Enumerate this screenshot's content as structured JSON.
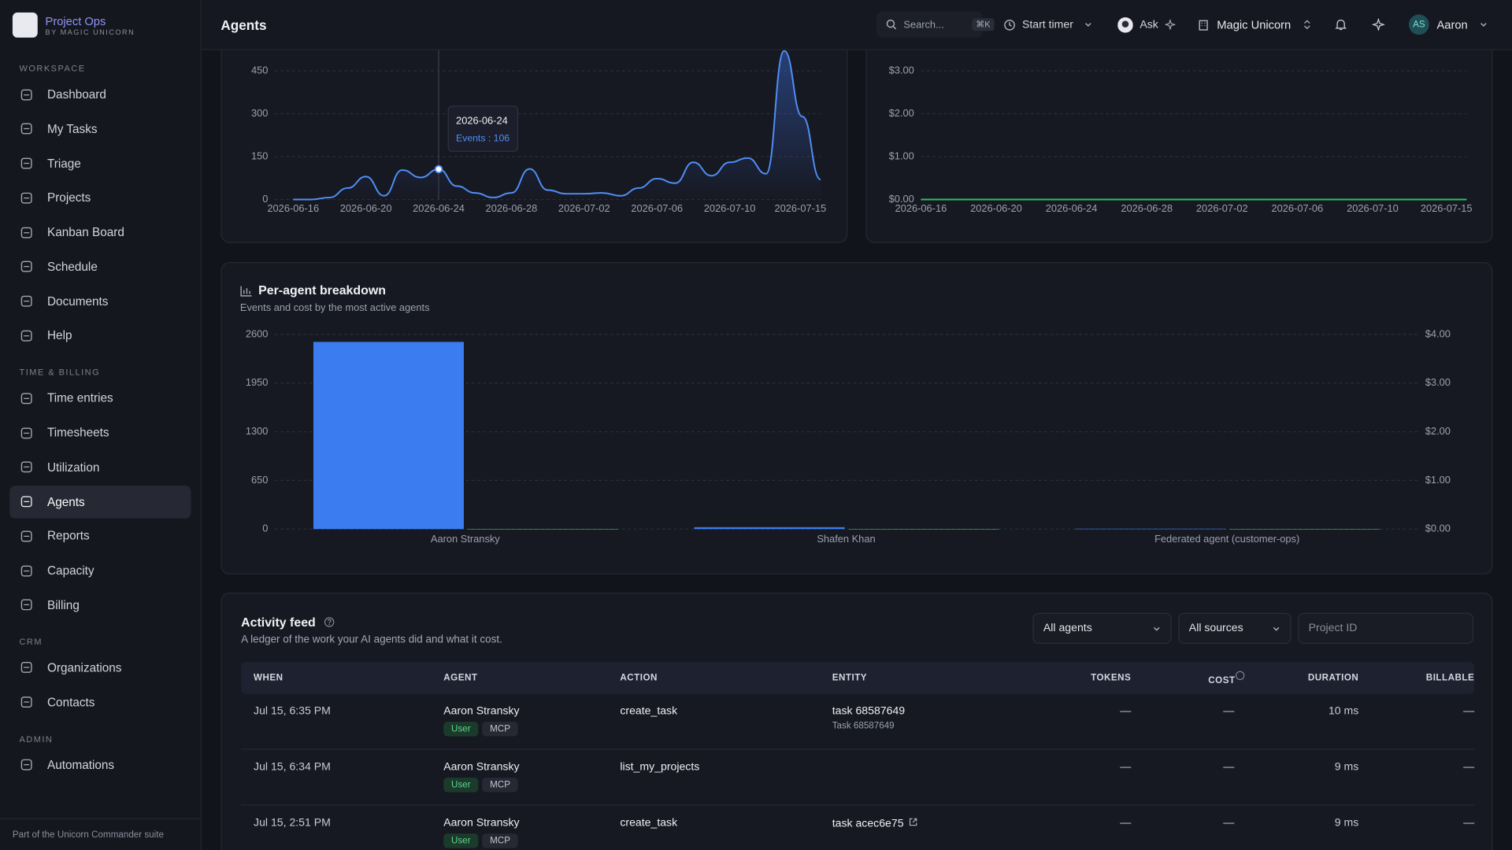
{
  "app": {
    "name": "Project Ops",
    "tagline": "BY MAGIC UNICORN"
  },
  "header": {
    "title": "Agents",
    "search": "Search...",
    "shortcut": "⌘K",
    "timer": "Start timer",
    "ask": "Ask",
    "workspace": "Magic Unicorn",
    "initials": "AS",
    "user": "Aaron"
  },
  "sidebar": {
    "sections": [
      {
        "title": "WORKSPACE",
        "items": [
          {
            "label": "Dashboard"
          },
          {
            "label": "My Tasks"
          },
          {
            "label": "Triage"
          },
          {
            "label": "Projects"
          },
          {
            "label": "Kanban Board"
          },
          {
            "label": "Schedule"
          },
          {
            "label": "Documents"
          },
          {
            "label": "Help"
          }
        ]
      },
      {
        "title": "TIME & BILLING",
        "items": [
          {
            "label": "Time entries"
          },
          {
            "label": "Timesheets"
          },
          {
            "label": "Utilization"
          },
          {
            "label": "Agents",
            "active": true
          },
          {
            "label": "Reports"
          },
          {
            "label": "Capacity"
          },
          {
            "label": "Billing"
          }
        ]
      },
      {
        "title": "CRM",
        "items": [
          {
            "label": "Organizations"
          },
          {
            "label": "Contacts"
          }
        ]
      },
      {
        "title": "ADMIN",
        "items": [
          {
            "label": "Automations"
          }
        ]
      }
    ],
    "footer": "Part of the Unicorn Commander suite"
  },
  "chart_data": [
    {
      "type": "line",
      "x": [
        "2026-06-16",
        null,
        null,
        null,
        "2026-06-20",
        null,
        null,
        null,
        "2026-06-24",
        null,
        null,
        null,
        "2026-06-28",
        null,
        null,
        null,
        "2026-07-02",
        null,
        null,
        null,
        "2026-07-06",
        null,
        null,
        null,
        "2026-07-10",
        null,
        null,
        null,
        null,
        "2026-07-15"
      ],
      "series": [
        {
          "name": "Events",
          "color": "#4f8ff7",
          "values": [
            0,
            0,
            7,
            40,
            80,
            13,
            103,
            77,
            106,
            47,
            23,
            7,
            23,
            107,
            33,
            20,
            20,
            23,
            13,
            40,
            73,
            57,
            130,
            83,
            130,
            145,
            90,
            520,
            290,
            70
          ]
        }
      ],
      "ylim": [
        0,
        600
      ],
      "yticks": [
        0,
        150,
        300,
        450
      ],
      "grid": true,
      "tooltip": {
        "title": "2026-06-24",
        "text": "Events : 106"
      }
    },
    {
      "type": "line",
      "x": [
        "2026-06-16",
        null,
        null,
        null,
        "2026-06-20",
        null,
        null,
        null,
        "2026-06-24",
        null,
        null,
        null,
        "2026-06-28",
        null,
        null,
        null,
        "2026-07-02",
        null,
        null,
        null,
        "2026-07-06",
        null,
        null,
        null,
        "2026-07-10",
        null,
        null,
        null,
        null,
        "2026-07-15"
      ],
      "series": [
        {
          "name": "Cost",
          "color": "#22c55e",
          "values": [
            0,
            0,
            0,
            0,
            0,
            0,
            0,
            0,
            0,
            0,
            0,
            0,
            0,
            0,
            0,
            0,
            0,
            0,
            0,
            0,
            0,
            0,
            0,
            0,
            0,
            0,
            0,
            0,
            0,
            0
          ]
        }
      ],
      "ylim": [
        0,
        4
      ],
      "yticks": [
        {
          "value": 0,
          "label": "$0.00"
        },
        {
          "value": 1,
          "label": "$1.00"
        },
        {
          "value": 2,
          "label": "$2.00"
        },
        {
          "value": 3,
          "label": "$3.00"
        }
      ],
      "grid": true
    },
    {
      "type": "bar",
      "title": "Per-agent breakdown",
      "subtitle": "Events and cost by the most active agents",
      "categories": [
        "Aaron Stransky",
        "Shafen Khan",
        "Federated agent (customer-ops)"
      ],
      "series": [
        {
          "name": "Events",
          "color": "#3b7cf0",
          "values": [
            2500,
            25,
            5
          ]
        },
        {
          "name": "Cost",
          "color": "#22c55e",
          "axis": "y2",
          "values": [
            0,
            0,
            0
          ]
        }
      ],
      "ylim": [
        0,
        2600
      ],
      "yticks": [
        0,
        650,
        1300,
        1950,
        2600
      ],
      "y2lim": [
        0,
        4
      ],
      "y2ticks": [
        {
          "value": 0,
          "label": "$0.00"
        },
        {
          "value": 1,
          "label": "$1.00"
        },
        {
          "value": 2,
          "label": "$2.00"
        },
        {
          "value": 3,
          "label": "$3.00"
        },
        {
          "value": 4,
          "label": "$4.00"
        }
      ],
      "grid": true
    }
  ],
  "activity": {
    "title": "Activity feed",
    "subtitle": "A ledger of the work your AI agents did and what it cost.",
    "filters": [
      "All agents",
      "All sources"
    ],
    "project_placeholder": "Project ID",
    "columns": [
      "WHEN",
      "AGENT",
      "ACTION",
      "ENTITY",
      "TOKENS",
      "COST",
      "DURATION",
      "BILLABLE"
    ],
    "rows": [
      {
        "when": "Jul 15, 6:35 PM",
        "agent": "Aaron Stransky",
        "tags": [
          "User",
          "MCP"
        ],
        "action": "create_task",
        "entity": "task 68587649",
        "entity_sub": "Task 68587649",
        "tokens": "—",
        "cost": "—",
        "duration": "10 ms",
        "billable": "—"
      },
      {
        "when": "Jul 15, 6:34 PM",
        "agent": "Aaron Stransky",
        "tags": [
          "User",
          "MCP"
        ],
        "action": "list_my_projects",
        "tokens": "—",
        "cost": "—",
        "duration": "9 ms",
        "billable": "—"
      },
      {
        "when": "Jul 15, 2:51 PM",
        "agent": "Aaron Stransky",
        "tags": [
          "User",
          "MCP"
        ],
        "action": "create_task",
        "entity": "task acec6e75",
        "link": true,
        "tokens": "—",
        "cost": "—",
        "duration": "9 ms",
        "billable": "—"
      }
    ]
  }
}
